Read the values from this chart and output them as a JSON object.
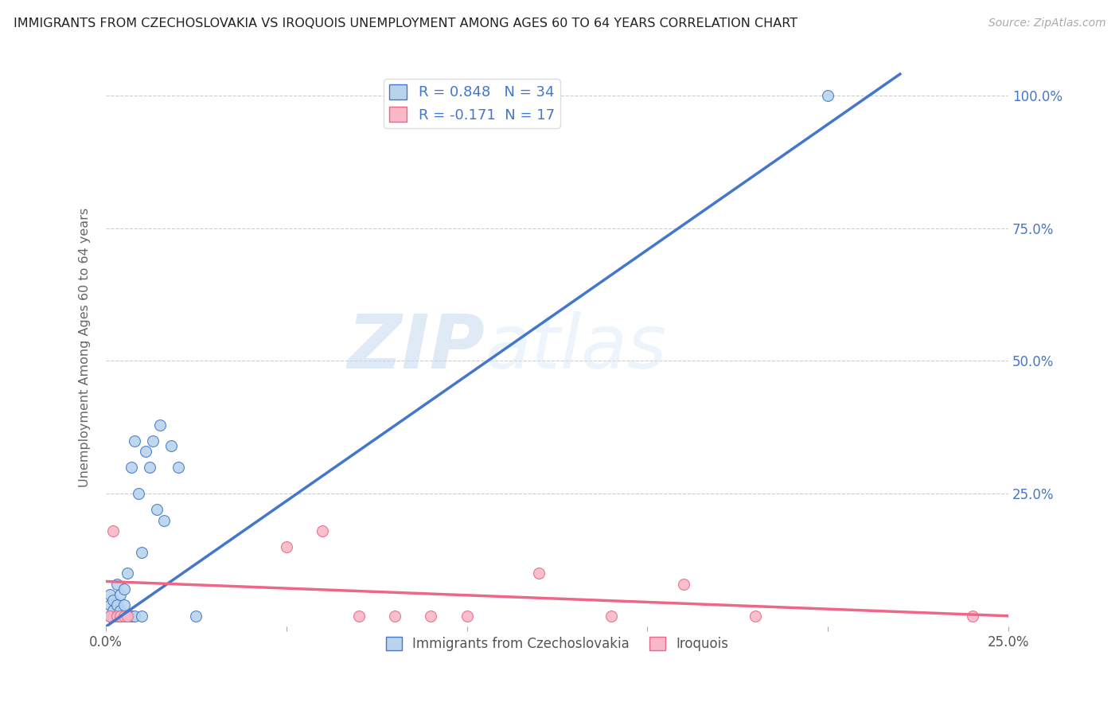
{
  "title": "IMMIGRANTS FROM CZECHOSLOVAKIA VS IROQUOIS UNEMPLOYMENT AMONG AGES 60 TO 64 YEARS CORRELATION CHART",
  "source": "Source: ZipAtlas.com",
  "ylabel": "Unemployment Among Ages 60 to 64 years",
  "xlim": [
    0.0,
    0.25
  ],
  "ylim": [
    0.0,
    1.05
  ],
  "xticks": [
    0.0,
    0.05,
    0.1,
    0.15,
    0.2,
    0.25
  ],
  "xticklabels_sparse": {
    "0": "0.0%",
    "5": "25.0%"
  },
  "yticks": [
    0.0,
    0.25,
    0.5,
    0.75,
    1.0
  ],
  "right_yticklabels": [
    "",
    "25.0%",
    "50.0%",
    "75.0%",
    "100.0%"
  ],
  "blue_R": 0.848,
  "blue_N": 34,
  "pink_R": -0.171,
  "pink_N": 17,
  "blue_dot_color": "#b8d4ec",
  "pink_dot_color": "#f8b8c8",
  "blue_line_color": "#4477cc",
  "pink_line_color": "#ee6688",
  "legend_label_blue": "Immigrants from Czechoslovakia",
  "legend_label_pink": "Iroquois",
  "watermark_zip": "ZIP",
  "watermark_atlas": "atlas",
  "background_color": "#ffffff",
  "blue_scatter_x": [
    0.001,
    0.001,
    0.001,
    0.002,
    0.002,
    0.002,
    0.003,
    0.003,
    0.003,
    0.004,
    0.004,
    0.004,
    0.005,
    0.005,
    0.005,
    0.006,
    0.006,
    0.007,
    0.007,
    0.008,
    0.008,
    0.009,
    0.01,
    0.01,
    0.011,
    0.012,
    0.013,
    0.014,
    0.015,
    0.016,
    0.018,
    0.02,
    0.025,
    0.2
  ],
  "blue_scatter_y": [
    0.02,
    0.04,
    0.06,
    0.02,
    0.03,
    0.05,
    0.02,
    0.04,
    0.08,
    0.02,
    0.03,
    0.06,
    0.02,
    0.04,
    0.07,
    0.02,
    0.1,
    0.02,
    0.3,
    0.02,
    0.35,
    0.25,
    0.02,
    0.14,
    0.33,
    0.3,
    0.35,
    0.22,
    0.38,
    0.2,
    0.34,
    0.3,
    0.02,
    1.0
  ],
  "pink_scatter_x": [
    0.001,
    0.002,
    0.003,
    0.004,
    0.005,
    0.006,
    0.05,
    0.06,
    0.07,
    0.08,
    0.09,
    0.1,
    0.12,
    0.14,
    0.16,
    0.18,
    0.24
  ],
  "pink_scatter_y": [
    0.02,
    0.18,
    0.02,
    0.02,
    0.02,
    0.02,
    0.15,
    0.18,
    0.02,
    0.02,
    0.02,
    0.02,
    0.1,
    0.02,
    0.08,
    0.02,
    0.02
  ],
  "blue_line_x": [
    0.0,
    0.22
  ],
  "blue_line_y": [
    0.0,
    1.04
  ],
  "pink_line_x": [
    0.0,
    0.25
  ],
  "pink_line_y": [
    0.085,
    0.02
  ]
}
